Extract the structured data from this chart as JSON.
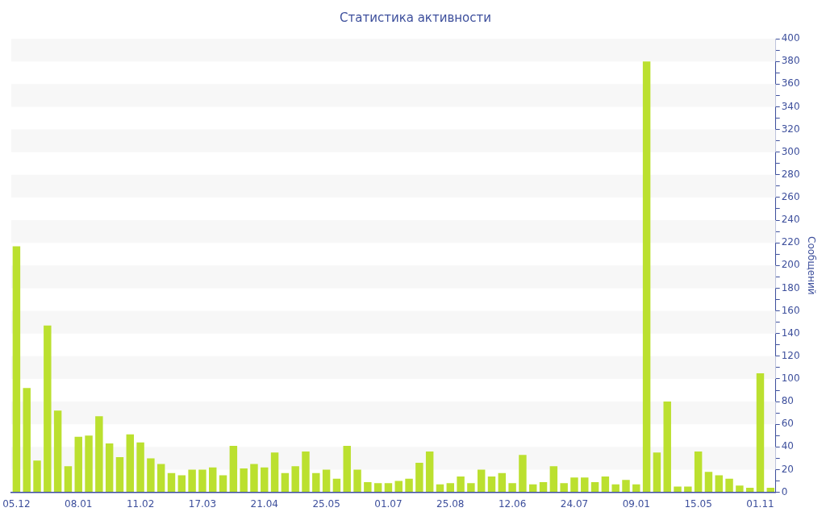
{
  "chart_data": {
    "type": "bar",
    "title": "Статистика активности",
    "ylabel": "Сообщений",
    "color": "#bbe02f",
    "categories": [
      "05.12",
      null,
      null,
      null,
      null,
      null,
      "08.01",
      null,
      null,
      null,
      null,
      null,
      "11.02",
      null,
      null,
      null,
      null,
      null,
      "17.03",
      null,
      null,
      null,
      null,
      null,
      "21.04",
      null,
      null,
      null,
      null,
      null,
      "25.05",
      null,
      null,
      null,
      null,
      null,
      "01.07",
      null,
      null,
      null,
      null,
      null,
      "25.08",
      null,
      null,
      null,
      null,
      null,
      "12.06",
      null,
      null,
      null,
      null,
      null,
      "24.07",
      null,
      null,
      null,
      null,
      null,
      "09.01",
      null,
      null,
      null,
      null,
      null,
      "15.05",
      null,
      null,
      null,
      null,
      null,
      "01.11",
      null
    ],
    "values": [
      217,
      92,
      28,
      147,
      72,
      23,
      49,
      50,
      67,
      43,
      31,
      51,
      44,
      30,
      25,
      17,
      15,
      20,
      20,
      22,
      15,
      41,
      21,
      25,
      22,
      35,
      17,
      23,
      36,
      17,
      20,
      12,
      41,
      20,
      9,
      8,
      8,
      10,
      12,
      26,
      36,
      7,
      8,
      14,
      8,
      20,
      14,
      17,
      8,
      33,
      7,
      9,
      23,
      8,
      13,
      13,
      9,
      14,
      7,
      11,
      7,
      380,
      35,
      80,
      5,
      5,
      36,
      18,
      15,
      12,
      6,
      4,
      105,
      4
    ],
    "ylim": [
      0,
      400
    ],
    "yticks": [
      0,
      {
        "value": 10,
        "label": null
      },
      20,
      {
        "value": 30,
        "label": null
      },
      40,
      {
        "value": 50,
        "label": null
      },
      60,
      {
        "value": 70,
        "label": null
      },
      80,
      {
        "value": 90,
        "label": null
      },
      100,
      {
        "value": 110,
        "label": null
      },
      120,
      {
        "value": 130,
        "label": null
      },
      140,
      {
        "value": 150,
        "label": null
      },
      160,
      {
        "value": 170,
        "label": null
      },
      180,
      {
        "value": 190,
        "label": null
      },
      200,
      {
        "value": 210,
        "label": null
      },
      220,
      {
        "value": 230,
        "label": null
      },
      240,
      {
        "value": 250,
        "label": null
      },
      260,
      {
        "value": 270,
        "label": null
      },
      280,
      {
        "value": 290,
        "label": null
      },
      300,
      {
        "value": 310,
        "label": null
      },
      320,
      {
        "value": 330,
        "label": null
      },
      340,
      {
        "value": 350,
        "label": null
      },
      360,
      {
        "value": 370,
        "label": null
      },
      380,
      {
        "value": 390,
        "label": null
      },
      400
    ],
    "bands": [
      {
        "axis": "y",
        "from": 20,
        "to": 40,
        "color": "#f7f7f7"
      },
      {
        "axis": "y",
        "from": 60,
        "to": 80,
        "color": "#f7f7f7"
      },
      {
        "axis": "y",
        "from": 100,
        "to": 120,
        "color": "#f7f7f7"
      },
      {
        "axis": "y",
        "from": 140,
        "to": 160,
        "color": "#f7f7f7"
      },
      {
        "axis": "y",
        "from": 180,
        "to": 200,
        "color": "#f7f7f7"
      },
      {
        "axis": "y",
        "from": 220,
        "to": 240,
        "color": "#f7f7f7"
      },
      {
        "axis": "y",
        "from": 260,
        "to": 280,
        "color": "#f7f7f7"
      },
      {
        "axis": "y",
        "from": 300,
        "to": 320,
        "color": "#f7f7f7"
      },
      {
        "axis": "y",
        "from": 340,
        "to": 360,
        "color": "#f7f7f7"
      },
      {
        "axis": "y",
        "from": 380,
        "to": 400,
        "color": "#f7f7f7"
      }
    ]
  }
}
